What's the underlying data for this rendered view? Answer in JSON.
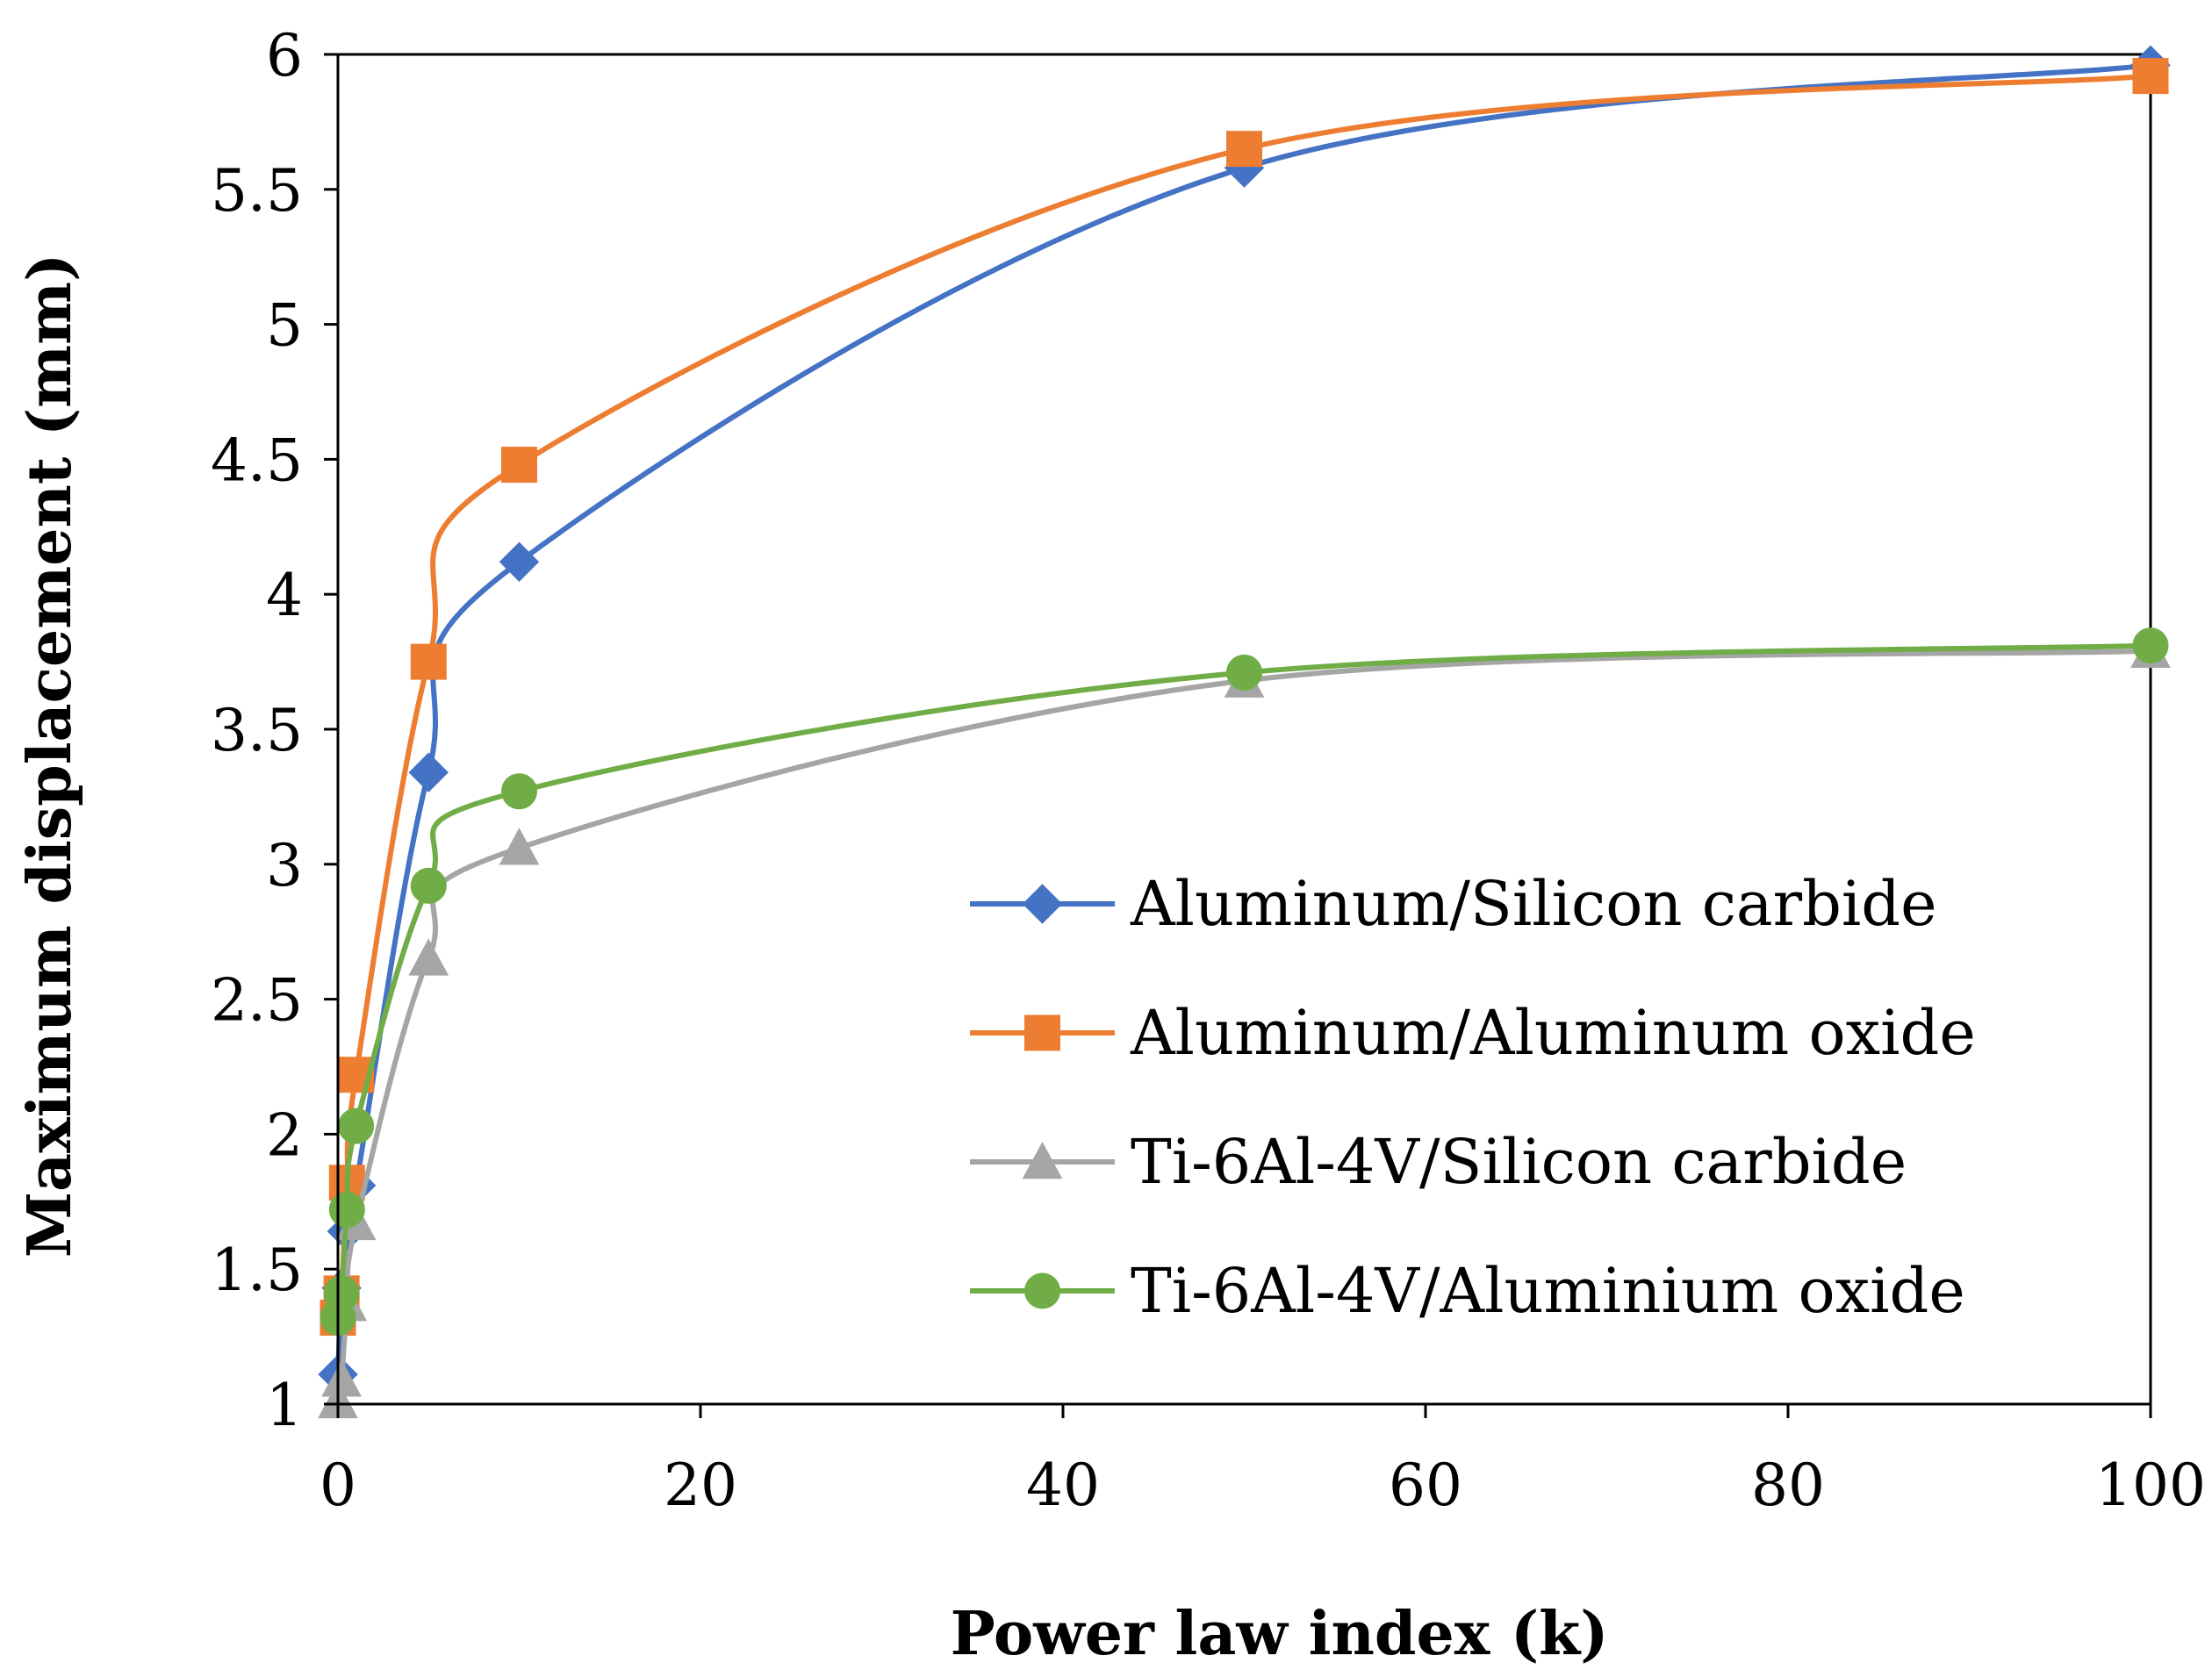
{
  "chart_data": {
    "type": "line",
    "title": "",
    "xlabel": "Power law index (k)",
    "ylabel": "Maximum displacement (mm)",
    "xlim": [
      0,
      100
    ],
    "ylim": [
      1,
      6
    ],
    "xticks": [
      0,
      20,
      40,
      60,
      80,
      100
    ],
    "xtick_labels": [
      "0",
      "20",
      "40",
      "60",
      "80",
      "100"
    ],
    "yticks": [
      1,
      1.5,
      2,
      2.5,
      3,
      3.5,
      4,
      4.5,
      5,
      5.5,
      6
    ],
    "ytick_labels": [
      "1",
      "1.5",
      "2",
      "2.5",
      "3",
      "3.5",
      "4",
      "4.5",
      "5",
      "5.5",
      "6"
    ],
    "grid": false,
    "legend_position": "center-right",
    "x": [
      0,
      0.2,
      0.5,
      1,
      5,
      10,
      50,
      100
    ],
    "series": [
      {
        "name": "Aluminum/Silicon carbide",
        "color": "#4472C4",
        "marker": "diamond",
        "values": [
          1.11,
          1.43,
          1.64,
          1.81,
          3.34,
          4.12,
          5.58,
          5.96
        ]
      },
      {
        "name": "Aluminum/Aluminum oxide",
        "color": "#ED7D31",
        "marker": "square",
        "values": [
          1.32,
          1.41,
          1.82,
          2.22,
          3.75,
          4.48,
          5.65,
          5.92
        ]
      },
      {
        "name": "Ti-6Al-4V/Silicon carbide",
        "color": "#A5A5A5",
        "marker": "triangle",
        "values": [
          1.01,
          1.09,
          1.37,
          1.67,
          2.65,
          3.06,
          3.68,
          3.79
        ]
      },
      {
        "name": "Ti-6Al-4V/Aluminium oxide",
        "color": "#70AD47",
        "marker": "circle",
        "values": [
          1.32,
          1.41,
          1.72,
          2.03,
          2.92,
          3.27,
          3.71,
          3.81
        ]
      }
    ]
  }
}
